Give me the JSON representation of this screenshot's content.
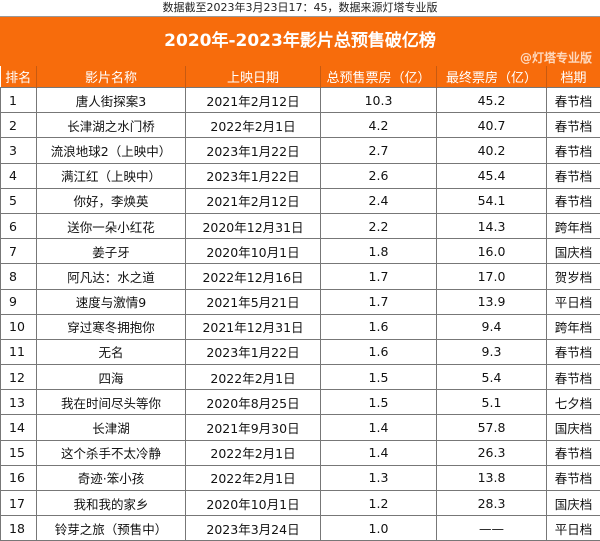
{
  "caption": "数据截至2023年3月23日17：45，数据来源灯塔专业版",
  "title": "2020年-2023年影片总预售破亿榜",
  "headers": [
    "排名",
    "影片名称",
    "上映日期",
    "总预售票房（亿）",
    "最终票房（亿）",
    "档期"
  ],
  "rows": [
    [
      "1",
      "唐人街探案3",
      "2021年2月12日",
      "10.3",
      "45.2",
      "春节档"
    ],
    [
      "2",
      "长津湖之水门桥",
      "2022年2月1日",
      "4.2",
      "40.7",
      "春节档"
    ],
    [
      "3",
      "流浪地球2（上映中）",
      "2023年1月22日",
      "2.7",
      "40.2",
      "春节档"
    ],
    [
      "4",
      "满江红（上映中）",
      "2023年1月22日",
      "2.6",
      "45.4",
      "春节档"
    ],
    [
      "5",
      "你好，李焕英",
      "2021年2月12日",
      "2.4",
      "54.1",
      "春节档"
    ],
    [
      "6",
      "送你一朵小红花",
      "2020年12月31日",
      "2.2",
      "14.3",
      "跨年档"
    ],
    [
      "7",
      "姜子牙",
      "2020年10月1日",
      "1.8",
      "16.0",
      "国庆档"
    ],
    [
      "8",
      "阿凡达：水之道",
      "2022年12月16日",
      "1.7",
      "17.0",
      "贺岁档"
    ],
    [
      "9",
      "速度与激情9",
      "2021年5月21日",
      "1.7",
      "13.9",
      "平日档"
    ],
    [
      "10",
      "穿过寒冬拥抱你",
      "2021年12月31日",
      "1.6",
      "9.4",
      "跨年档"
    ],
    [
      "11",
      "无名",
      "2023年1月22日",
      "1.6",
      "9.3",
      "春节档"
    ],
    [
      "12",
      "四海",
      "2022年2月1日",
      "1.5",
      "5.4",
      "春节档"
    ],
    [
      "13",
      "我在时间尽头等你",
      "2020年8月25日",
      "1.5",
      "5.1",
      "七夕档"
    ],
    [
      "14",
      "长津湖",
      "2021年9月30日",
      "1.4",
      "57.8",
      "国庆档"
    ],
    [
      "15",
      "这个杀手不太冷静",
      "2022年2月1日",
      "1.4",
      "26.3",
      "春节档"
    ],
    [
      "16",
      "奇迹·笨小孩",
      "2022年2月1日",
      "1.3",
      "13.8",
      "春节档"
    ],
    [
      "17",
      "我和我的家乡",
      "2020年10月1日",
      "1.2",
      "28.3",
      "国庆档"
    ],
    [
      "18",
      "铃芽之旅（预售中）",
      "2023年3月24日",
      "1.0",
      "——",
      "平日档"
    ]
  ],
  "watermark": "@灯塔专业版",
  "colors": {
    "accent": "#f76c0c"
  }
}
